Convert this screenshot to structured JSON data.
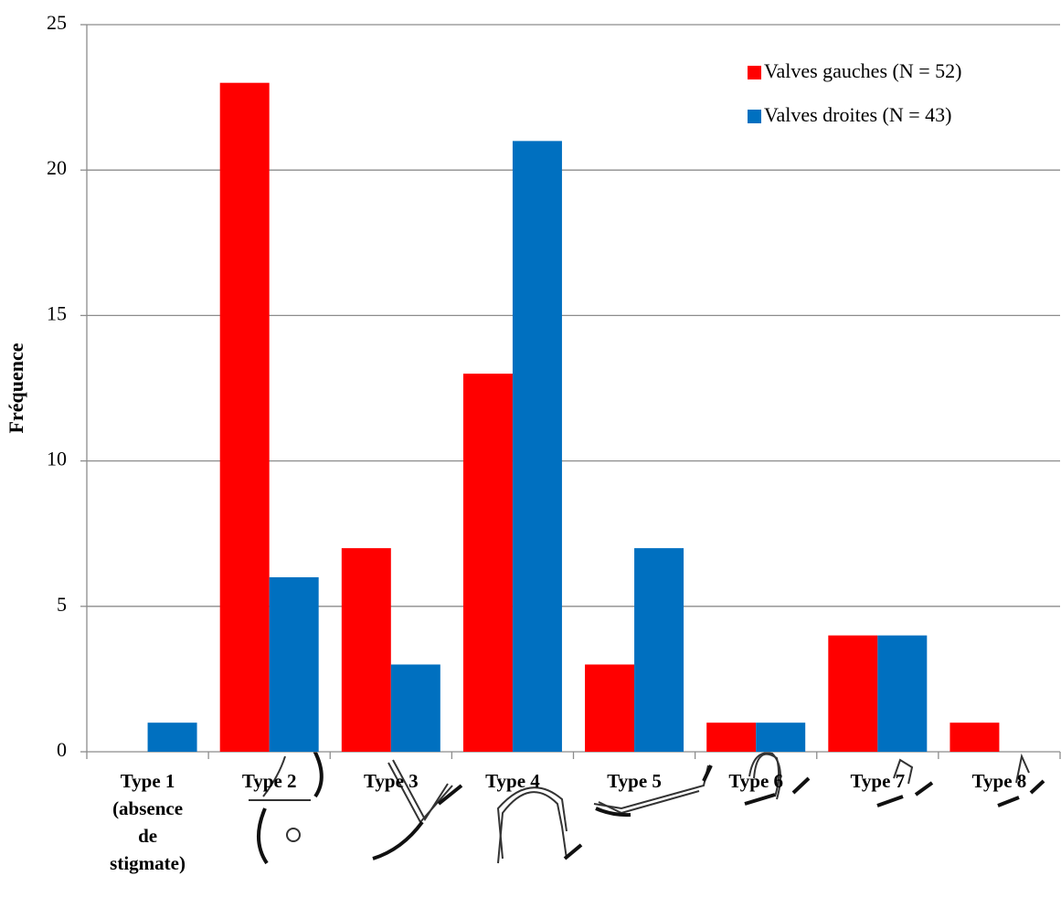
{
  "chart_data": {
    "type": "bar",
    "y_label": "Fréquence",
    "categories": [
      "Type 1 (absence de stigmate)",
      "Type 2",
      "Type 3",
      "Type 4",
      "Type 5",
      "Type 6",
      "Type 7",
      "Type 8"
    ],
    "series": [
      {
        "name": "Valves gauches (N = 52)",
        "color": "#ff0000",
        "values": [
          0,
          23,
          7,
          13,
          3,
          1,
          4,
          1
        ]
      },
      {
        "name": "Valves droites (N = 43)",
        "color": "#0070c0",
        "values": [
          1,
          6,
          3,
          21,
          7,
          1,
          4,
          0
        ]
      }
    ],
    "ylim": [
      0,
      25
    ],
    "yticks": [
      0,
      5,
      10,
      15,
      20,
      25
    ],
    "grid": true,
    "legend": "top-right"
  }
}
